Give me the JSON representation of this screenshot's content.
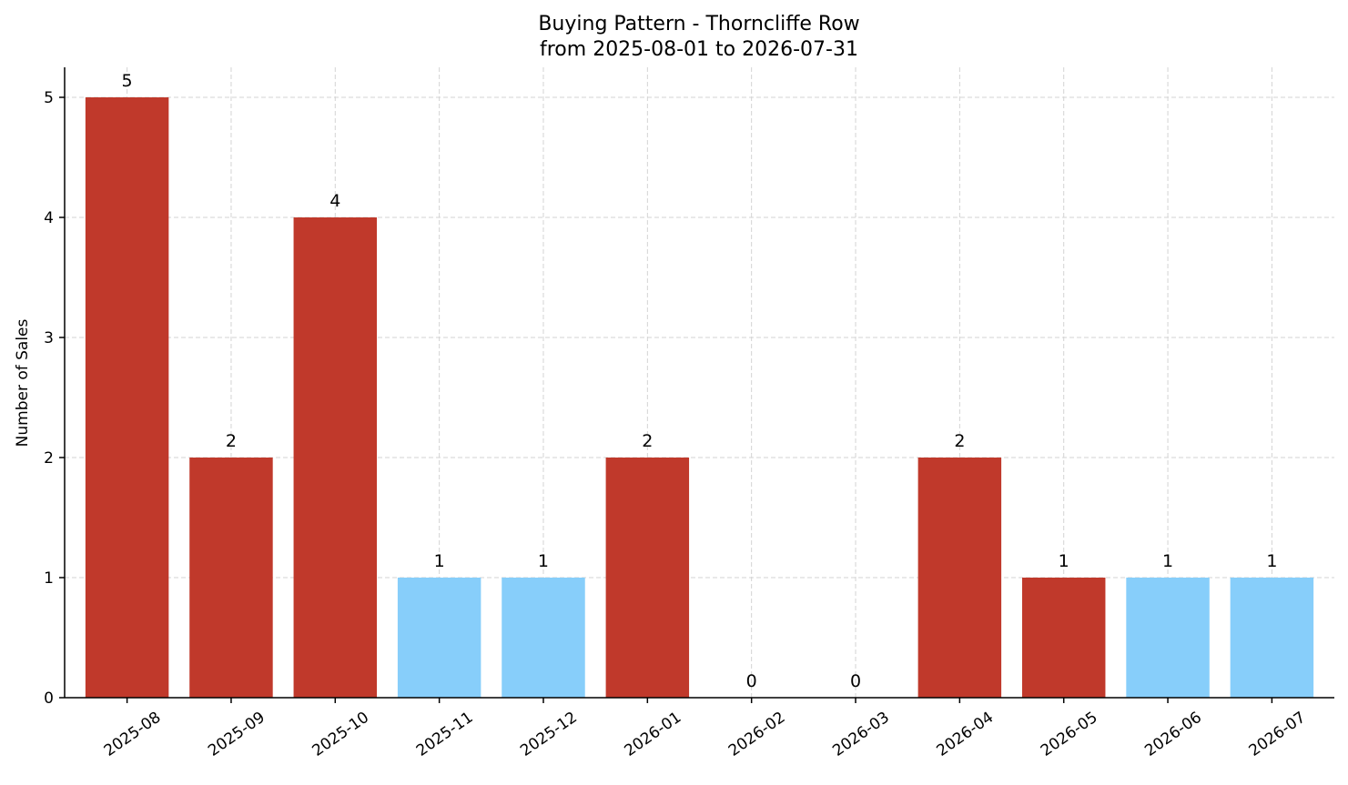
{
  "chart_data": {
    "type": "bar",
    "title": "Buying Pattern - Thorncliffe Row",
    "subtitle": "from 2025-08-01 to 2026-07-31",
    "xlabel": "",
    "ylabel": "Number of Sales",
    "categories": [
      "2025-08",
      "2025-09",
      "2025-10",
      "2025-11",
      "2025-12",
      "2026-01",
      "2026-02",
      "2026-03",
      "2026-04",
      "2026-05",
      "2026-06",
      "2026-07"
    ],
    "values": [
      5,
      2,
      4,
      1,
      1,
      2,
      0,
      0,
      2,
      1,
      1,
      1
    ],
    "bar_colors": [
      "#c0392b",
      "#c0392b",
      "#c0392b",
      "#87cefa",
      "#87cefa",
      "#c0392b",
      "#c0392b",
      "#c0392b",
      "#c0392b",
      "#c0392b",
      "#87cefa",
      "#87cefa"
    ],
    "ylim": [
      0,
      5.25
    ],
    "yticks": [
      0,
      1,
      2,
      3,
      4,
      5
    ],
    "grid": true,
    "legend": "none"
  }
}
